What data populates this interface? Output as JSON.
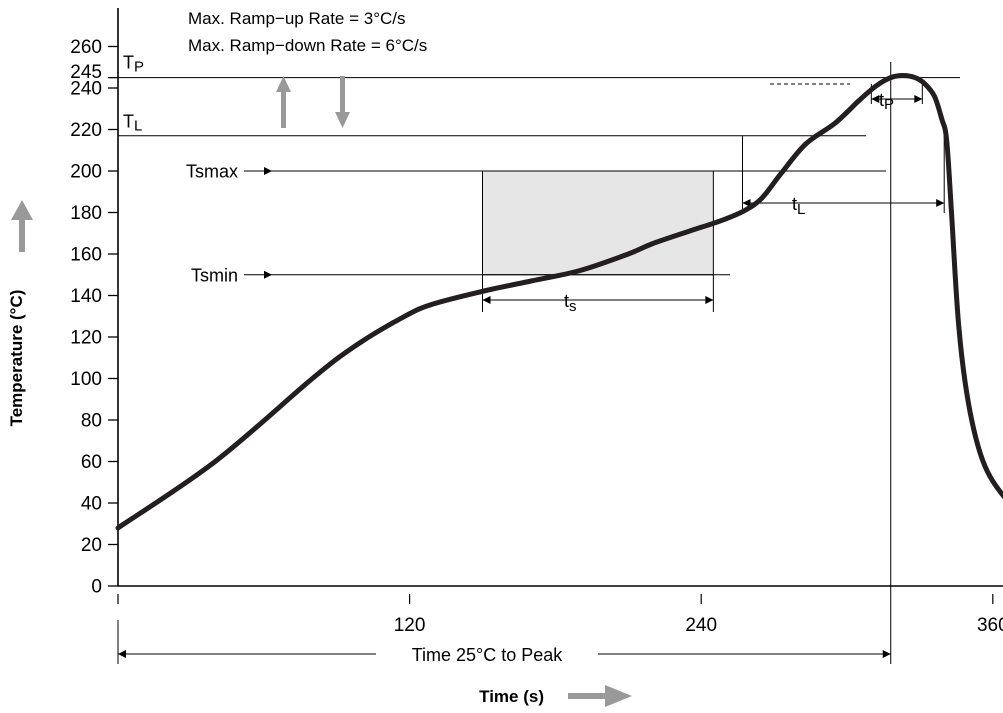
{
  "chart_data": {
    "type": "line",
    "title": "",
    "xlabel": "Time (s)",
    "ylabel": "Temperature (°C)",
    "xlim": [
      0,
      385
    ],
    "ylim": [
      0,
      270
    ],
    "x_ticks": [
      120,
      240,
      360
    ],
    "y_ticks": [
      0,
      20,
      40,
      60,
      80,
      100,
      120,
      140,
      160,
      180,
      200,
      220,
      240,
      260
    ],
    "special_y_ticks": [
      245
    ],
    "grid": false,
    "legend": "none",
    "notes": [
      "Max. Ramp−up Rate = 3°C/s",
      "Max. Ramp−down Rate = 6°C/s"
    ],
    "series": [
      {
        "color": "#231f20",
        "x": [
          0,
          40,
          80,
          98,
          118,
          130,
          150,
          170,
          190,
          210,
          220,
          235,
          248,
          258,
          265,
          273,
          283,
          295,
          305,
          312,
          318,
          323,
          328,
          332,
          336,
          339,
          341,
          343,
          346,
          350,
          356,
          364,
          372,
          378,
          385
        ],
        "y": [
          28,
          60,
          100,
          116,
          130,
          136,
          142,
          147,
          152,
          160,
          165,
          171,
          176,
          181,
          187,
          199,
          213,
          223,
          234,
          241,
          245,
          246,
          245,
          242,
          236,
          225,
          215,
          180,
          125,
          88,
          60,
          44,
          36,
          30,
          20
        ]
      }
    ],
    "levels": [
      {
        "name": "TP",
        "label": "TP",
        "value": 245
      },
      {
        "name": "TL",
        "label": "TL",
        "value": 217
      },
      {
        "name": "Tsmax",
        "label": "Tsmax",
        "value": 200
      },
      {
        "name": "Tsmin",
        "label": "Tsmin",
        "value": 150
      }
    ],
    "soak_region": {
      "x": [
        150,
        245
      ],
      "y": [
        150,
        200
      ],
      "fill": "#e6e6e6"
    },
    "intervals": [
      {
        "name": "ts",
        "label": "ts",
        "x": [
          150,
          245
        ]
      },
      {
        "name": "tL",
        "label": "tL",
        "x": [
          257,
          340
        ]
      },
      {
        "name": "tP",
        "label": "tP",
        "x": [
          310,
          331
        ]
      },
      {
        "name": "time-25-to-peak",
        "label": "Time 25°C to Peak",
        "x": [
          0,
          318
        ]
      }
    ],
    "peak_time": 318,
    "arrow_color": "#999999"
  }
}
